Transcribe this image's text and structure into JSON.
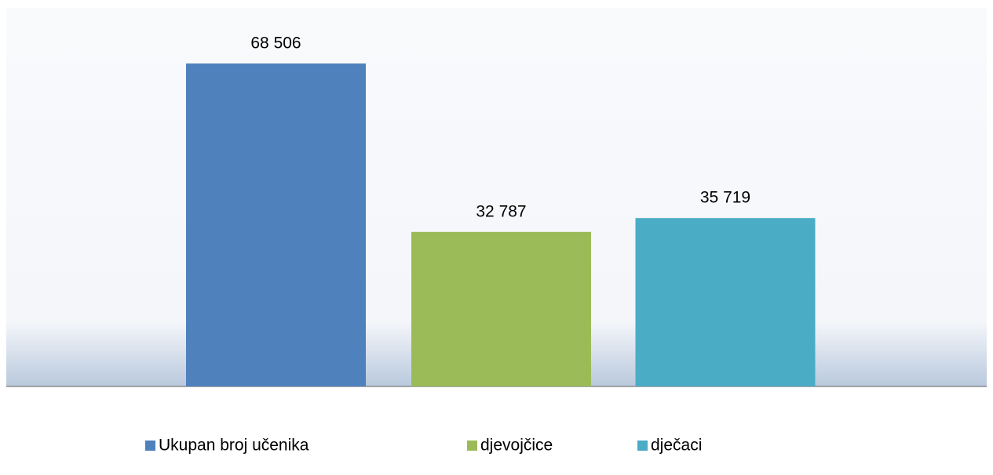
{
  "chart_data": {
    "type": "bar",
    "series": [
      {
        "name": "Ukupan broj učenika",
        "color": "#4f81bd",
        "values": [
          68506
        ],
        "value_labels": [
          "68 506"
        ]
      },
      {
        "name": "djevojčice",
        "color": "#9bbb59",
        "values": [
          32787
        ],
        "value_labels": [
          "32 787"
        ]
      },
      {
        "name": "dječaci",
        "color": "#4bacc6",
        "values": [
          35719
        ],
        "value_labels": [
          "35 719"
        ]
      }
    ]
  }
}
